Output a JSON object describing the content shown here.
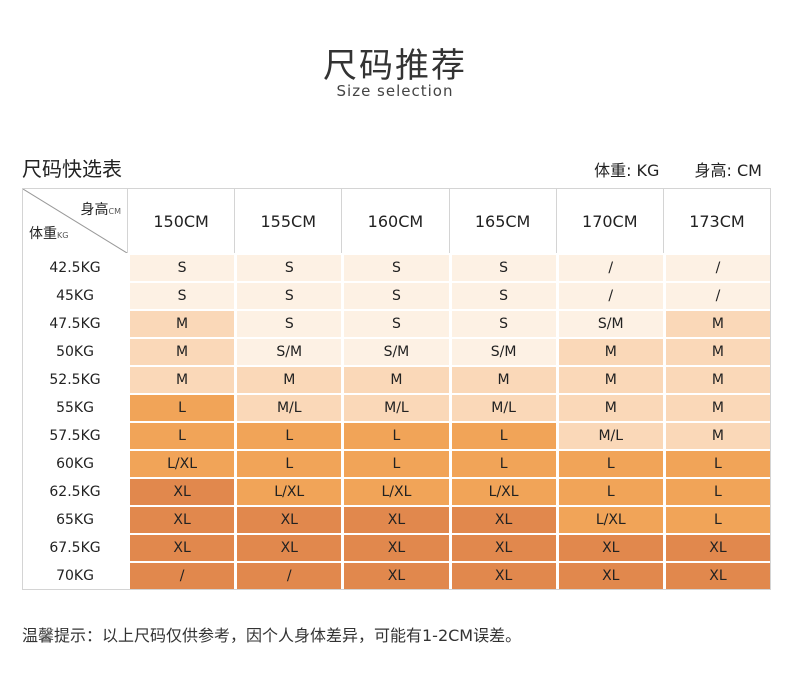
{
  "title": "尺码推荐",
  "subtitle": "Size selection",
  "table_title": "尺码快选表",
  "units": {
    "weight": "体重: KG",
    "height": "身高: CM"
  },
  "corner": {
    "height_label": "身高",
    "height_unit": "CM",
    "weight_label": "体重",
    "weight_unit": "KG"
  },
  "heights": [
    "150CM",
    "155CM",
    "160CM",
    "165CM",
    "170CM",
    "173CM"
  ],
  "colors": {
    "lightest": "#fdf1e4",
    "light": "#fad8b8",
    "medium": "#f1a458",
    "dark": "#e1884d"
  },
  "rows": [
    {
      "weight": "42.5KG",
      "sizes": [
        "S",
        "S",
        "S",
        "S",
        "/",
        "/"
      ],
      "shades": [
        "lightest",
        "lightest",
        "lightest",
        "lightest",
        "lightest",
        "lightest"
      ]
    },
    {
      "weight": "45KG",
      "sizes": [
        "S",
        "S",
        "S",
        "S",
        "/",
        "/"
      ],
      "shades": [
        "lightest",
        "lightest",
        "lightest",
        "lightest",
        "lightest",
        "lightest"
      ]
    },
    {
      "weight": "47.5KG",
      "sizes": [
        "M",
        "S",
        "S",
        "S",
        "S/M",
        "M"
      ],
      "shades": [
        "light",
        "lightest",
        "lightest",
        "lightest",
        "lightest",
        "light"
      ]
    },
    {
      "weight": "50KG",
      "sizes": [
        "M",
        "S/M",
        "S/M",
        "S/M",
        "M",
        "M"
      ],
      "shades": [
        "light",
        "lightest",
        "lightest",
        "lightest",
        "light",
        "light"
      ]
    },
    {
      "weight": "52.5KG",
      "sizes": [
        "M",
        "M",
        "M",
        "M",
        "M",
        "M"
      ],
      "shades": [
        "light",
        "light",
        "light",
        "light",
        "light",
        "light"
      ]
    },
    {
      "weight": "55KG",
      "sizes": [
        "L",
        "M/L",
        "M/L",
        "M/L",
        "M",
        "M"
      ],
      "shades": [
        "medium",
        "light",
        "light",
        "light",
        "light",
        "light"
      ]
    },
    {
      "weight": "57.5KG",
      "sizes": [
        "L",
        "L",
        "L",
        "L",
        "M/L",
        "M"
      ],
      "shades": [
        "medium",
        "medium",
        "medium",
        "medium",
        "light",
        "light"
      ]
    },
    {
      "weight": "60KG",
      "sizes": [
        "L/XL",
        "L",
        "L",
        "L",
        "L",
        "L"
      ],
      "shades": [
        "medium",
        "medium",
        "medium",
        "medium",
        "medium",
        "medium"
      ]
    },
    {
      "weight": "62.5KG",
      "sizes": [
        "XL",
        "L/XL",
        "L/XL",
        "L/XL",
        "L",
        "L"
      ],
      "shades": [
        "dark",
        "medium",
        "medium",
        "medium",
        "medium",
        "medium"
      ]
    },
    {
      "weight": "65KG",
      "sizes": [
        "XL",
        "XL",
        "XL",
        "XL",
        "L/XL",
        "L"
      ],
      "shades": [
        "dark",
        "dark",
        "dark",
        "dark",
        "medium",
        "medium"
      ]
    },
    {
      "weight": "67.5KG",
      "sizes": [
        "XL",
        "XL",
        "XL",
        "XL",
        "XL",
        "XL"
      ],
      "shades": [
        "dark",
        "dark",
        "dark",
        "dark",
        "dark",
        "dark"
      ]
    },
    {
      "weight": "70KG",
      "sizes": [
        "/",
        "/",
        "XL",
        "XL",
        "XL",
        "XL"
      ],
      "shades": [
        "dark",
        "dark",
        "dark",
        "dark",
        "dark",
        "dark"
      ]
    }
  ],
  "note": "温馨提示：以上尺码仅供参考，因个人身体差异，可能有1-2CM误差。"
}
